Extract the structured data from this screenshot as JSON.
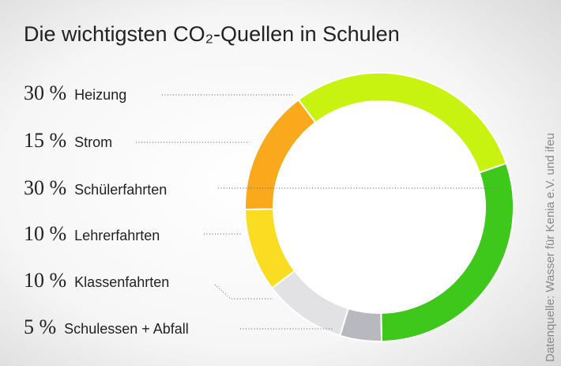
{
  "chart_data": {
    "type": "donut",
    "title": "Die wichtigsten CO₂-Quellen in Schulen",
    "source": "Datenquelle: Wasser für Kenia e.V. und ifeu",
    "categories": [
      "Heizung",
      "Strom",
      "Schülerfahrten",
      "Lehrerfahrten",
      "Klassenfahrten",
      "Schulessen + Abfall"
    ],
    "values": [
      30,
      15,
      30,
      10,
      10,
      5
    ],
    "value_labels": [
      "30 %",
      "15 %",
      "30 %",
      "10 %",
      "10 %",
      "5 %"
    ],
    "colors": [
      "#c8f20f",
      "#f9a91b",
      "#3ec81c",
      "#fadd22",
      "#e2e2e5",
      "#b8b8bf"
    ]
  }
}
